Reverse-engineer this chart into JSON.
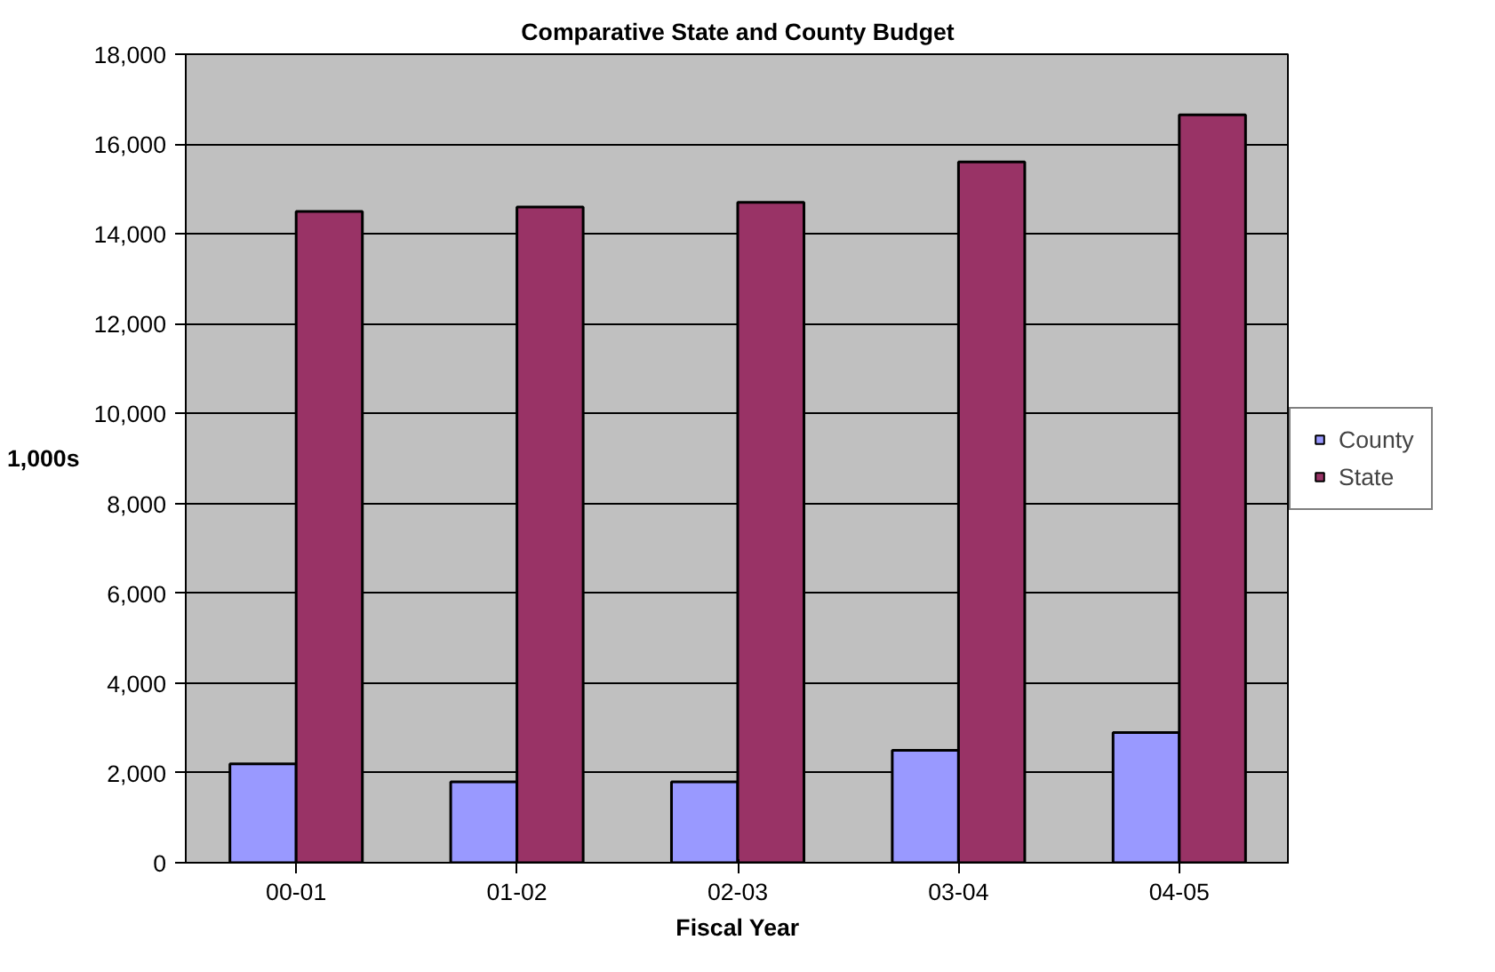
{
  "chart_data": {
    "type": "bar",
    "title": "Comparative State and County Budget",
    "xlabel": "Fiscal Year",
    "ylabel": "1,000s",
    "categories": [
      "00-01",
      "01-02",
      "02-03",
      "03-04",
      "04-05"
    ],
    "series": [
      {
        "name": "County",
        "color": "#9999ff",
        "values": [
          2200,
          1800,
          1800,
          2500,
          2900
        ]
      },
      {
        "name": "State",
        "color": "#993366",
        "values": [
          14500,
          14600,
          14700,
          15600,
          16650
        ]
      }
    ],
    "ylim": [
      0,
      18000
    ],
    "yticks": [
      {
        "value": 0,
        "label": "0"
      },
      {
        "value": 2000,
        "label": "2,000"
      },
      {
        "value": 4000,
        "label": "4,000"
      },
      {
        "value": 6000,
        "label": "6,000"
      },
      {
        "value": 8000,
        "label": "8,000"
      },
      {
        "value": 10000,
        "label": "10,000"
      },
      {
        "value": 12000,
        "label": "12,000"
      },
      {
        "value": 14000,
        "label": "14,000"
      },
      {
        "value": 16000,
        "label": "16,000"
      },
      {
        "value": 18000,
        "label": "18,000"
      }
    ],
    "grid": "y",
    "legend": "right"
  }
}
